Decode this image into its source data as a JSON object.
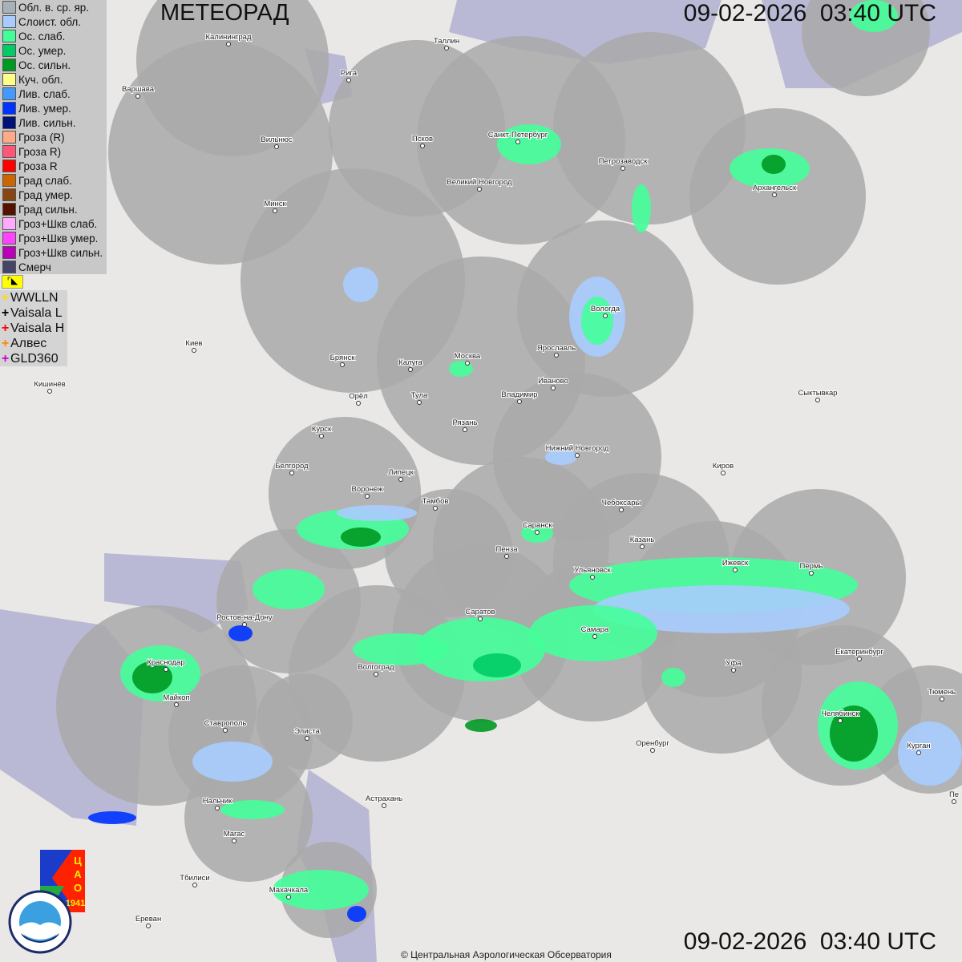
{
  "header": {
    "title": "МЕТЕОРАД",
    "timestamp_top": "09-02-2026  03:40 UTC",
    "timestamp_bottom": "09-02-2026  03:40 UTC"
  },
  "legend": {
    "items": [
      {
        "label": "Обл. в. ср. яр.",
        "color": "#a8b0b8"
      },
      {
        "label": "Слоист. обл.",
        "color": "#a8ccff"
      },
      {
        "label": "Ос. слаб.",
        "color": "#44ff99"
      },
      {
        "label": "Ос. умер.",
        "color": "#00cc66"
      },
      {
        "label": "Ос. сильн.",
        "color": "#009922"
      },
      {
        "label": "Куч. обл.",
        "color": "#ffff88"
      },
      {
        "label": "Лив. слаб.",
        "color": "#4499ff"
      },
      {
        "label": "Лив. умер.",
        "color": "#0033ff"
      },
      {
        "label": "Лив. сильн.",
        "color": "#001177"
      },
      {
        "label": "Гроза (R)",
        "color": "#ffaa88"
      },
      {
        "label": "Гроза R)",
        "color": "#ff5577"
      },
      {
        "label": "Гроза R",
        "color": "#ff0000"
      },
      {
        "label": "Град слаб.",
        "color": "#cc6600"
      },
      {
        "label": "Град умер.",
        "color": "#884411"
      },
      {
        "label": "Град сильн.",
        "color": "#551100"
      },
      {
        "label": "Гроз+Шкв слаб.",
        "color": "#ffaaff"
      },
      {
        "label": "Гроз+Шкв умер.",
        "color": "#ff44ff"
      },
      {
        "label": "Гроз+Шкв сильн.",
        "color": "#bb00bb"
      },
      {
        "label": "Смерч",
        "color": "#444466"
      }
    ],
    "lightning": [
      {
        "label": "WWLLN",
        "color": "#ffdd00"
      },
      {
        "label": "Vaisala L",
        "color": "#000000"
      },
      {
        "label": "Vaisala H",
        "color": "#ff0000"
      },
      {
        "label": "Алвес",
        "color": "#ff8800"
      },
      {
        "label": "GLD360",
        "color": "#cc00cc"
      }
    ]
  },
  "cities": [
    "Калининград",
    "Таллин",
    "Рига",
    "Варшава",
    "Вильнюс",
    "Псков",
    "Санкт-Петербург",
    "Петрозаводск",
    "Архангельск",
    "Великий Новгород",
    "Минск",
    "Вологда",
    "Киев",
    "Брянск",
    "Калуга",
    "Москва",
    "Ярославль",
    "Иваново",
    "Владимир",
    "Тула",
    "Орёл",
    "Кишинёв",
    "Сыктывкар",
    "Рязань",
    "Курск",
    "Нижний Новгород",
    "Белгород",
    "Липецк",
    "Киров",
    "Воронеж",
    "Тамбов",
    "Чебоксары",
    "Саранск",
    "Пенза",
    "Казань",
    "Ульяновск",
    "Ижевск",
    "Пермь",
    "Ростов-на-Дону",
    "Саратов",
    "Самара",
    "Краснодар",
    "Волгоград",
    "Уфа",
    "Екатеринбург",
    "Майкоп",
    "Челябинск",
    "Ставрополь",
    "Элиста",
    "Оренбург",
    "Курган",
    "Тюмень",
    "Астрахань",
    "Нальчик",
    "Магас",
    "Тбилиси",
    "Махачкала",
    "Ереван",
    "Пе"
  ],
  "logos": {
    "cao": "ЦАО 1941",
    "roshydromet": "РОСГИДРОМЕТ ROSHYDROMET"
  },
  "footer": {
    "copyright": "© Центральная Аэрологическая Обсерватория"
  }
}
